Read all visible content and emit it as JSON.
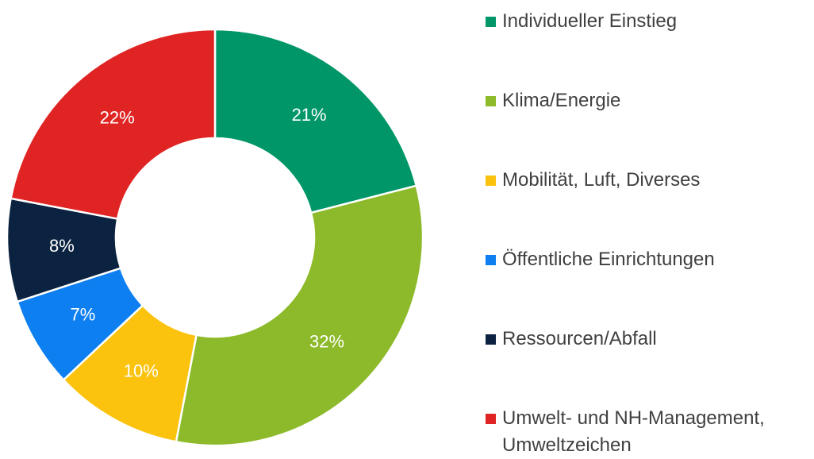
{
  "chart_data": {
    "type": "donut",
    "categories": [
      "Individueller Einstieg",
      "Klima/Energie",
      "Mobilität, Luft, Diverses",
      "Öffentliche Einrichtungen",
      "Ressourcen/Abfall",
      "Umwelt- und NH-Management, Umweltzeichen"
    ],
    "values": [
      21,
      32,
      10,
      7,
      8,
      22
    ],
    "value_labels": [
      "21%",
      "32%",
      "10%",
      "7%",
      "8%",
      "22%"
    ],
    "colors": [
      "#009668",
      "#8dba2a",
      "#fbc20e",
      "#0d7ff0",
      "#0b2340",
      "#e02424"
    ],
    "legend": "right"
  }
}
